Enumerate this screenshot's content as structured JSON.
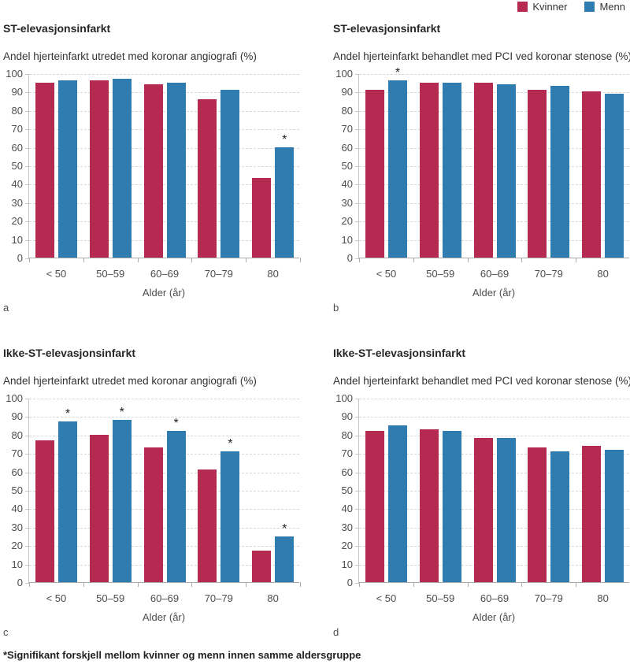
{
  "legend": {
    "items": [
      {
        "label": "Kvinner",
        "color": "#b52a50"
      },
      {
        "label": "Menn",
        "color": "#2e7cb0"
      }
    ]
  },
  "footnote": "*Signifikant forskjell mellom kvinner og menn innen samme aldersgruppe",
  "palette": {
    "kvinner": "#b52a50",
    "menn": "#2e7cb0",
    "gridline": "#d8d8d8",
    "axis": "#aaaaaa"
  },
  "chart_data": [
    {
      "type": "bar",
      "panel_letter": "a",
      "title": "ST-elevasjonsinfarkt",
      "subtitle": "Andel hjerteinfarkt utredet med koronar angiografi (%)",
      "xlabel": "Alder (år)",
      "categories": [
        "< 50",
        "50–59",
        "60–69",
        "70–79",
        "80"
      ],
      "ylim": [
        0,
        100
      ],
      "y_tick_step": 10,
      "grid": "dashed-horizontal",
      "legend_position": "top-right-shared",
      "series": [
        {
          "name": "Kvinner",
          "color": "#b52a50",
          "values": [
            95,
            96,
            94,
            86,
            43
          ]
        },
        {
          "name": "Menn",
          "color": "#2e7cb0",
          "values": [
            96,
            97,
            95,
            91,
            60
          ]
        }
      ],
      "significant": [
        false,
        false,
        false,
        false,
        true
      ]
    },
    {
      "type": "bar",
      "panel_letter": "b",
      "title": "ST-elevasjonsinfarkt",
      "subtitle": "Andel hjerteinfarkt behandlet med PCI ved koronar stenose (%)",
      "xlabel": "Alder (år)",
      "categories": [
        "< 50",
        "50–59",
        "60–69",
        "70–79",
        "80"
      ],
      "ylim": [
        0,
        100
      ],
      "y_tick_step": 10,
      "grid": "dashed-horizontal",
      "legend_position": "top-right-shared",
      "series": [
        {
          "name": "Kvinner",
          "color": "#b52a50",
          "values": [
            91,
            95,
            95,
            91,
            90
          ]
        },
        {
          "name": "Menn",
          "color": "#2e7cb0",
          "values": [
            96,
            95,
            94,
            93,
            89
          ]
        }
      ],
      "significant": [
        true,
        false,
        false,
        false,
        false
      ]
    },
    {
      "type": "bar",
      "panel_letter": "c",
      "title": "Ikke-ST-elevasjonsinfarkt",
      "subtitle": "Andel hjerteinfarkt utredet med koronar angiografi (%)",
      "xlabel": "Alder (år)",
      "categories": [
        "< 50",
        "50–59",
        "60–69",
        "70–79",
        "80"
      ],
      "ylim": [
        0,
        100
      ],
      "y_tick_step": 10,
      "grid": "dashed-horizontal",
      "legend_position": "top-right-shared",
      "series": [
        {
          "name": "Kvinner",
          "color": "#b52a50",
          "values": [
            77,
            80,
            73,
            61,
            17
          ]
        },
        {
          "name": "Menn",
          "color": "#2e7cb0",
          "values": [
            87,
            88,
            82,
            71,
            25
          ]
        }
      ],
      "significant": [
        true,
        true,
        true,
        true,
        true
      ]
    },
    {
      "type": "bar",
      "panel_letter": "d",
      "title": "Ikke-ST-elevasjonsinfarkt",
      "subtitle": "Andel hjerteinfarkt behandlet med PCI ved koronar stenose (%)",
      "xlabel": "Alder (år)",
      "categories": [
        "< 50",
        "50–59",
        "60–69",
        "70–79",
        "80"
      ],
      "ylim": [
        0,
        100
      ],
      "y_tick_step": 10,
      "grid": "dashed-horizontal",
      "legend_position": "top-right-shared",
      "series": [
        {
          "name": "Kvinner",
          "color": "#b52a50",
          "values": [
            82,
            83,
            78,
            73,
            74
          ]
        },
        {
          "name": "Menn",
          "color": "#2e7cb0",
          "values": [
            85,
            82,
            78,
            71,
            72
          ]
        }
      ],
      "significant": [
        false,
        false,
        false,
        false,
        false
      ]
    }
  ]
}
